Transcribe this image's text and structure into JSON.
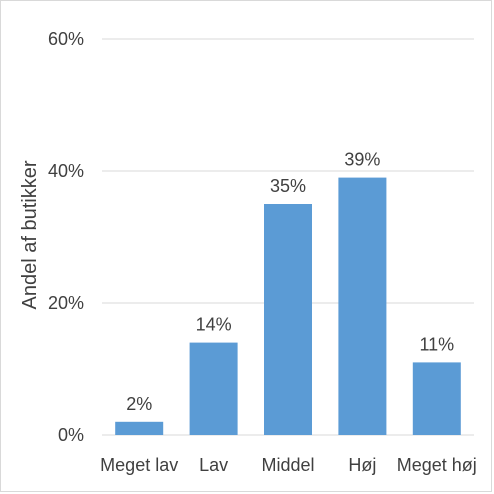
{
  "chart_data": {
    "type": "bar",
    "categories": [
      "Meget lav",
      "Lav",
      "Middel",
      "Høj",
      "Meget høj"
    ],
    "values": [
      2,
      14,
      35,
      39,
      11
    ],
    "value_unit": "%",
    "data_labels": [
      "2%",
      "14%",
      "35%",
      "39%",
      "11%"
    ],
    "ylabel": "Andel af butikker",
    "xlabel": "",
    "ylim": [
      0,
      60
    ],
    "yticks": [
      0,
      20,
      40,
      60
    ],
    "ytick_labels": [
      "0%",
      "20%",
      "40%",
      "60%"
    ],
    "grid": true,
    "legend": "none",
    "bar_color": "#5b9bd5",
    "grid_color": "#d9d9d9"
  }
}
